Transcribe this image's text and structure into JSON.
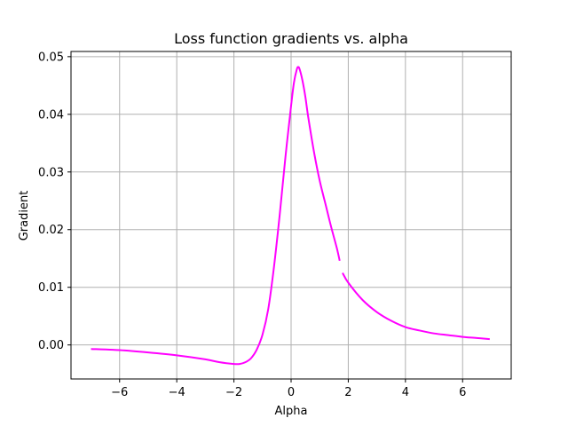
{
  "chart_data": {
    "type": "line",
    "title": "Loss function gradients vs. alpha",
    "xlabel": "Alpha",
    "ylabel": "Gradient",
    "xlim": [
      -7.7,
      7.7
    ],
    "ylim": [
      -0.0059,
      0.0509
    ],
    "xticks": [
      -6,
      -4,
      -2,
      0,
      2,
      4,
      6
    ],
    "xtick_labels": [
      "−6",
      "−4",
      "−2",
      "0",
      "2",
      "4",
      "6"
    ],
    "yticks": [
      0.0,
      0.01,
      0.02,
      0.03,
      0.04,
      0.05
    ],
    "ytick_labels": [
      "0.00",
      "0.01",
      "0.02",
      "0.03",
      "0.04",
      "0.05"
    ],
    "grid": true,
    "color": "#ff00ff",
    "series": [
      {
        "segments": [
          {
            "x": [
              -7.0,
              -6.0,
              -5.0,
              -4.0,
              -3.0,
              -2.5,
              -2.0,
              -1.8,
              -1.6,
              -1.4,
              -1.2,
              -1.0,
              -0.8,
              -0.6,
              -0.4,
              -0.2,
              0.0,
              0.1,
              0.2,
              0.25,
              0.3,
              0.4,
              0.5,
              0.6,
              0.8,
              1.0,
              1.2,
              1.4,
              1.6,
              1.7
            ],
            "y": [
              -0.0007,
              -0.0009,
              -0.0013,
              -0.0018,
              -0.0025,
              -0.003,
              -0.0033,
              -0.0033,
              -0.003,
              -0.0023,
              -0.0008,
              0.0018,
              0.0062,
              0.0135,
              0.0225,
              0.0325,
              0.0415,
              0.0455,
              0.0478,
              0.0482,
              0.0478,
              0.0458,
              0.043,
              0.0395,
              0.0335,
              0.0285,
              0.0245,
              0.0205,
              0.0168,
              0.0146
            ]
          },
          {
            "x": [
              1.8,
              2.0,
              2.5,
              3.0,
              3.5,
              4.0,
              4.5,
              5.0,
              5.5,
              6.0,
              6.5,
              6.95
            ],
            "y": [
              0.0125,
              0.0108,
              0.0078,
              0.0057,
              0.0042,
              0.0031,
              0.0025,
              0.002,
              0.0017,
              0.0014,
              0.0012,
              0.001
            ]
          }
        ]
      }
    ]
  }
}
